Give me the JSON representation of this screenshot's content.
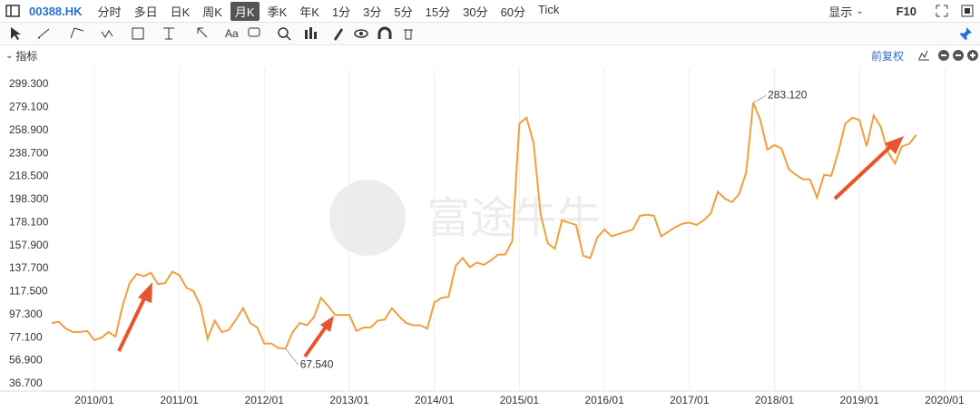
{
  "toolbar": {
    "symbol": "00388.HK",
    "periods": [
      "分时",
      "多日",
      "日K",
      "周K",
      "月K",
      "季K",
      "年K",
      "1分",
      "3分",
      "5分",
      "15分",
      "30分",
      "60分",
      "Tick"
    ],
    "selected": "月K",
    "display": "显示",
    "f10": "F10",
    "text_tool": "Aa"
  },
  "indicator_bar": {
    "label": "指标",
    "adjust": "前复权"
  },
  "chart_data": {
    "type": "line",
    "x": [
      "2009/07",
      "2009/08",
      "2009/09",
      "2009/10",
      "2009/11",
      "2009/12",
      "2010/01",
      "2010/02",
      "2010/03",
      "2010/04",
      "2010/05",
      "2010/06",
      "2010/07",
      "2010/08",
      "2010/09",
      "2010/10",
      "2010/11",
      "2010/12",
      "2011/01",
      "2011/02",
      "2011/03",
      "2011/04",
      "2011/05",
      "2011/06",
      "2011/07",
      "2011/08",
      "2011/09",
      "2011/10",
      "2011/11",
      "2011/12",
      "2012/01",
      "2012/02",
      "2012/03",
      "2012/04",
      "2012/05",
      "2012/06",
      "2012/07",
      "2012/08",
      "2012/09",
      "2012/10",
      "2012/11",
      "2012/12",
      "2013/01",
      "2013/02",
      "2013/03",
      "2013/04",
      "2013/05",
      "2013/06",
      "2013/07",
      "2013/08",
      "2013/09",
      "2013/10",
      "2013/11",
      "2013/12",
      "2014/01",
      "2014/02",
      "2014/03",
      "2014/04",
      "2014/05",
      "2014/06",
      "2014/07",
      "2014/08",
      "2014/09",
      "2014/10",
      "2014/11",
      "2014/12",
      "2015/01",
      "2015/02",
      "2015/03",
      "2015/04",
      "2015/05",
      "2015/06",
      "2015/07",
      "2015/08",
      "2015/09",
      "2015/10",
      "2015/11",
      "2015/12",
      "2016/01",
      "2016/02",
      "2016/03",
      "2016/04",
      "2016/05",
      "2016/06",
      "2016/07",
      "2016/08",
      "2016/09",
      "2016/10",
      "2016/11",
      "2016/12",
      "2017/01",
      "2017/02",
      "2017/03",
      "2017/04",
      "2017/05",
      "2017/06",
      "2017/07",
      "2017/08",
      "2017/09",
      "2017/10",
      "2017/11",
      "2017/12",
      "2018/01",
      "2018/02",
      "2018/03",
      "2018/04",
      "2018/05",
      "2018/06",
      "2018/07",
      "2018/08",
      "2018/09",
      "2018/10",
      "2018/11",
      "2018/12",
      "2019/01",
      "2019/02",
      "2019/03",
      "2019/04",
      "2019/05",
      "2019/06",
      "2019/07",
      "2019/08",
      "2019/09"
    ],
    "series": [
      {
        "color": "#f0a03c",
        "values": [
          90,
          91,
          85,
          82,
          82,
          83,
          75,
          77,
          82,
          78,
          105,
          125,
          133,
          131,
          134,
          124,
          125,
          135,
          132,
          121,
          118,
          105,
          76,
          92,
          82,
          84,
          93,
          103,
          90,
          86,
          72,
          72,
          68,
          67.54,
          82,
          90,
          88,
          95,
          112,
          105,
          97,
          97,
          97,
          83,
          86,
          86,
          92,
          93,
          103,
          96,
          90,
          88,
          88,
          85,
          108,
          112,
          113,
          140,
          147,
          139,
          143,
          141,
          145,
          150,
          150,
          162,
          265,
          270,
          248,
          185,
          160,
          155,
          180,
          178,
          176,
          149,
          147,
          165,
          172,
          166,
          168,
          170,
          172,
          184,
          185,
          184,
          166,
          170,
          174,
          177,
          178,
          176,
          180,
          186,
          205,
          199,
          196,
          203,
          222,
          283.12,
          268,
          242,
          246,
          243,
          225,
          220,
          216,
          216,
          200,
          220,
          219,
          240,
          265,
          270,
          268,
          245,
          272,
          262,
          240,
          230,
          245,
          247,
          255
        ]
      }
    ],
    "xlim": [
      "2009/07",
      "2020/06"
    ],
    "xticks": [
      "2010/01",
      "2011/01",
      "2012/01",
      "2013/01",
      "2014/01",
      "2015/01",
      "2016/01",
      "2017/01",
      "2018/01",
      "2019/01",
      "2020/01"
    ],
    "ylim": [
      29.5,
      313.6
    ],
    "yticks": [
      {
        "value": 299.3,
        "label": "299.300"
      },
      {
        "value": 279.1,
        "label": "279.100"
      },
      {
        "value": 258.9,
        "label": "258.900"
      },
      {
        "value": 238.7,
        "label": "238.700"
      },
      {
        "value": 218.5,
        "label": "218.500"
      },
      {
        "value": 198.3,
        "label": "198.300"
      },
      {
        "value": 178.1,
        "label": "178.100"
      },
      {
        "value": 157.9,
        "label": "157.900"
      },
      {
        "value": 137.7,
        "label": "137.700"
      },
      {
        "value": 117.5,
        "label": "117.500"
      },
      {
        "value": 97.3,
        "label": "97.300"
      },
      {
        "value": 77.1,
        "label": "77.100"
      },
      {
        "value": 56.9,
        "label": "56.900"
      },
      {
        "value": 36.7,
        "label": "36.700"
      }
    ],
    "grid": "x",
    "annotations": [
      {
        "x": "2017/10",
        "label": "283.120"
      },
      {
        "x": "2012/04",
        "label": "67.540"
      }
    ]
  }
}
